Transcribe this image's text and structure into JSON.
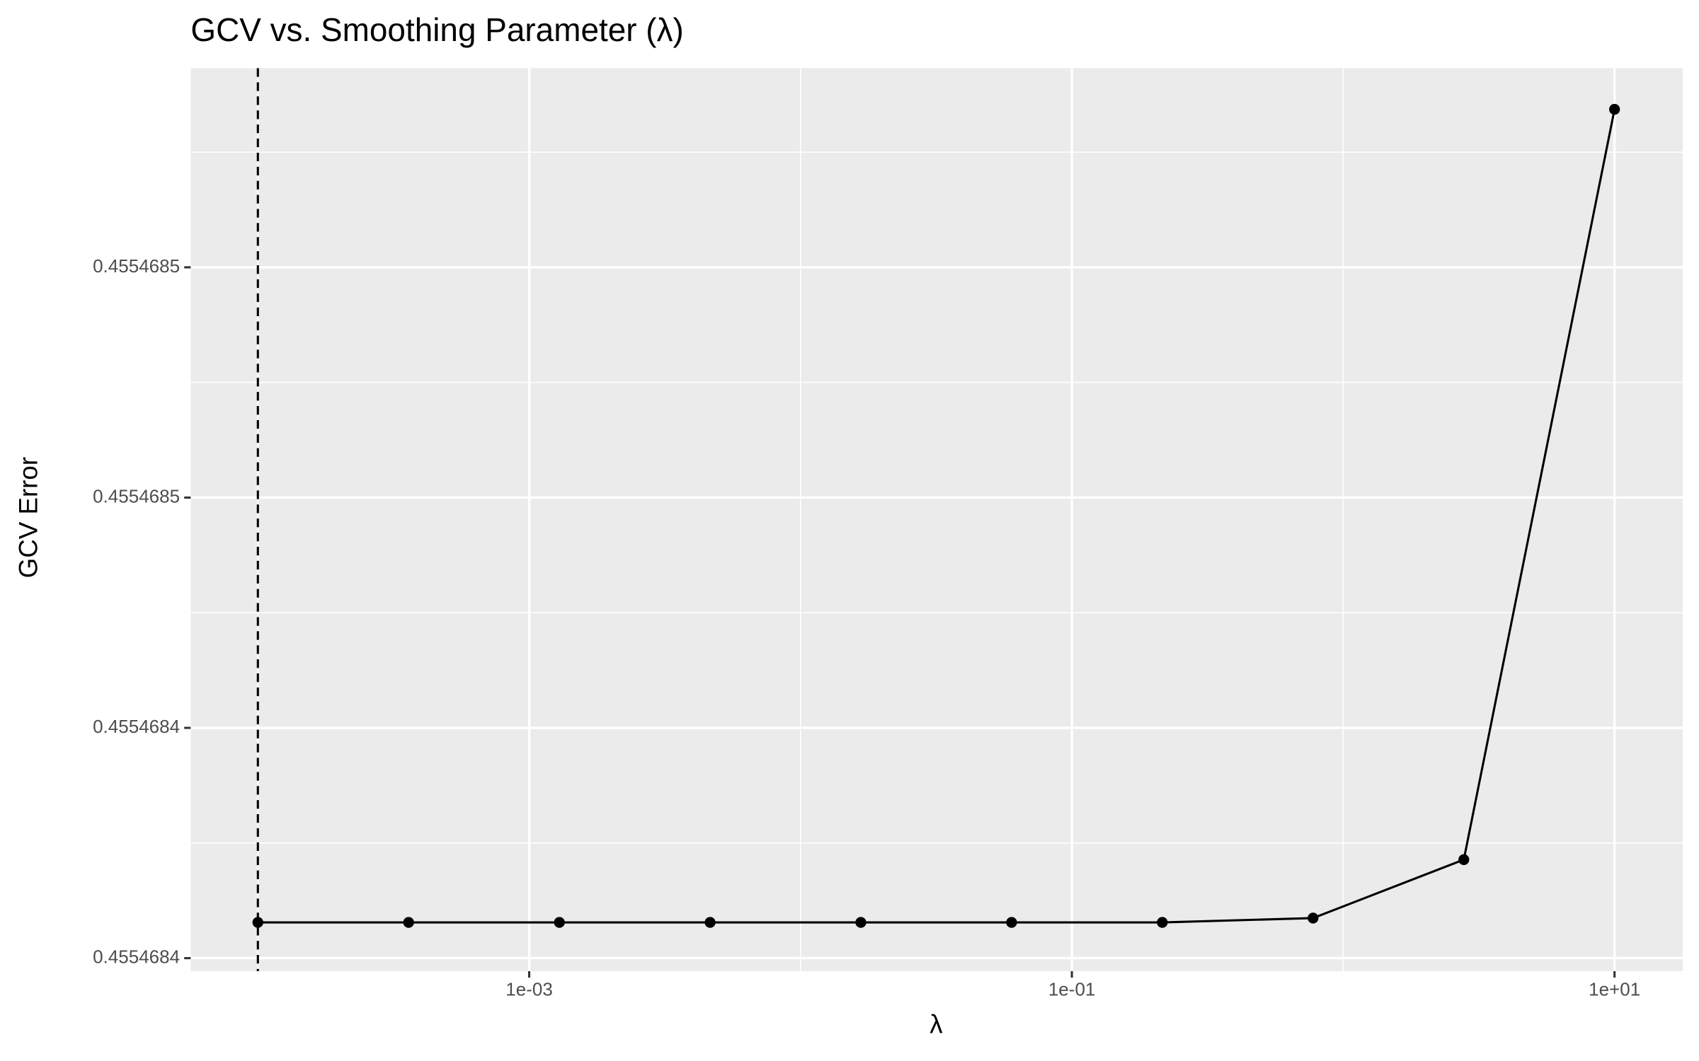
{
  "chart_data": {
    "type": "line",
    "title": "GCV vs. Smoothing Parameter (λ)",
    "x_label": "λ",
    "y_label": "GCV Error",
    "x_log": true,
    "grid": true,
    "x": [
      0.0001,
      0.0003594,
      0.001292,
      0.004642,
      0.01668,
      0.05995,
      0.2154,
      0.7743,
      2.783,
      10
    ],
    "series": [
      {
        "color": "#000000",
        "values": [
          0.45546840776,
          0.45546840776,
          0.45546840776,
          0.45546840776,
          0.45546840776,
          0.45546840776,
          0.45546840776,
          0.4554684087,
          0.45546842139,
          0.4554685843
        ]
      }
    ],
    "vline": 0.0001,
    "xlim": [
      5.655e-05,
      17.84
    ],
    "xticks": [
      {
        "value": 0.001,
        "label": "1e-03"
      },
      {
        "value": 0.1,
        "label": "1e-01"
      },
      {
        "value": 10,
        "label": "1e+01"
      }
    ],
    "ylim": [
      0.45546839718,
      0.45546859323
    ],
    "yticks": [
      0.4554684,
      {
        "value": 0.45546845,
        "label": "0.4554684"
      },
      {
        "value": 0.4554685,
        "label": "0.4554685"
      },
      {
        "value": 0.45546855,
        "label": "0.4554685"
      }
    ]
  }
}
